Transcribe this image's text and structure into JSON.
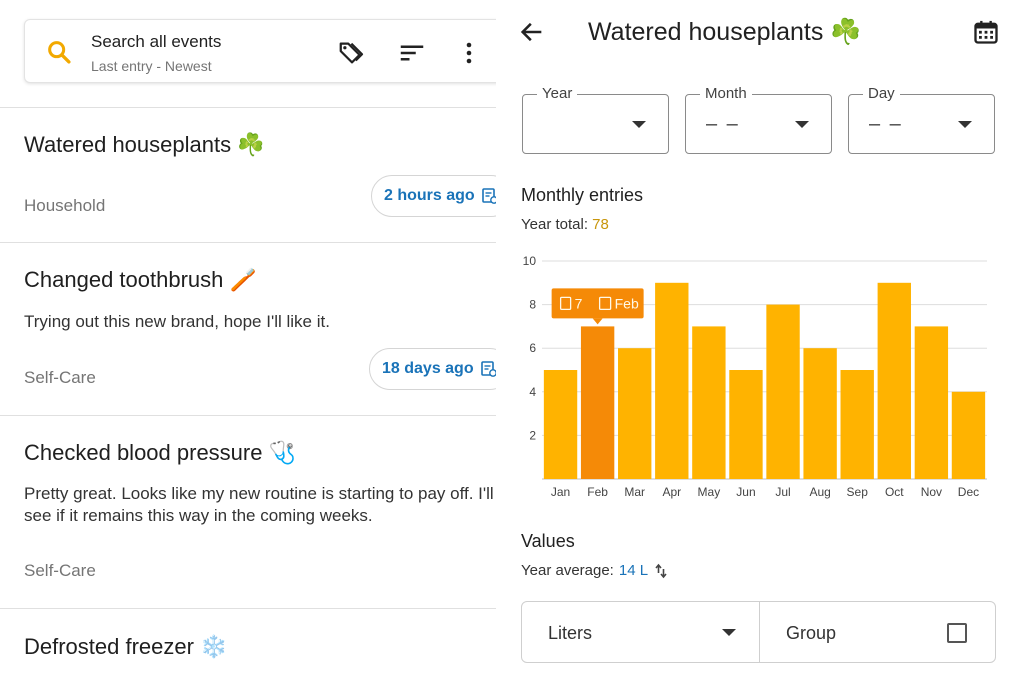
{
  "search": {
    "title": "Search all events",
    "subtitle": "Last entry - Newest",
    "icons": [
      "search-icon",
      "tag-icon",
      "sort-icon",
      "more-vert-icon"
    ],
    "accent": "#f2a900"
  },
  "entries": [
    {
      "title": "Watered houseplants ☘️",
      "note": "",
      "category": "Household",
      "time": "2 hours ago"
    },
    {
      "title": "Changed toothbrush 🪥",
      "note": "Trying out this new brand, hope I'll like it.",
      "category": "Self-Care",
      "time": "18 days ago"
    },
    {
      "title": "Checked blood pressure 🩺",
      "note": "Pretty great. Looks like my new routine is starting to pay off. I'll see if it remains this way in the coming weeks.",
      "category": "Self-Care",
      "time": ""
    },
    {
      "title": "Defrosted freezer ❄️",
      "note": "",
      "category": "",
      "time": ""
    }
  ],
  "detail": {
    "title": "Watered houseplants ☘️",
    "filters": {
      "year": {
        "label": "Year",
        "value": ""
      },
      "month": {
        "label": "Month",
        "value": "– –"
      },
      "day": {
        "label": "Day",
        "value": "– –"
      }
    },
    "monthly_heading": "Monthly entries",
    "year_total_label": "Year total:",
    "year_total_value": "78",
    "values_heading": "Values",
    "year_average_label": "Year average:",
    "year_average_value": "14 L",
    "unit_select": "Liters",
    "group_label": "Group",
    "group_checked": false
  },
  "colors": {
    "bar": "#ffb300",
    "bar_selected": "#f58a07",
    "tooltip": "#f58a07",
    "link_blue": "#1a73b8",
    "total_gold": "#c8960c"
  },
  "chart_data": {
    "type": "bar",
    "categories": [
      "Jan",
      "Feb",
      "Mar",
      "Apr",
      "May",
      "Jun",
      "Jul",
      "Aug",
      "Sep",
      "Oct",
      "Nov",
      "Dec"
    ],
    "values": [
      5,
      7,
      6,
      9,
      7,
      5,
      8,
      6,
      5,
      9,
      7,
      4
    ],
    "ylim": [
      0,
      10
    ],
    "yticks": [
      2,
      4,
      6,
      8,
      10
    ],
    "grid": true,
    "selected_index": 1,
    "tooltip": {
      "count": "7",
      "month": "Feb"
    }
  }
}
